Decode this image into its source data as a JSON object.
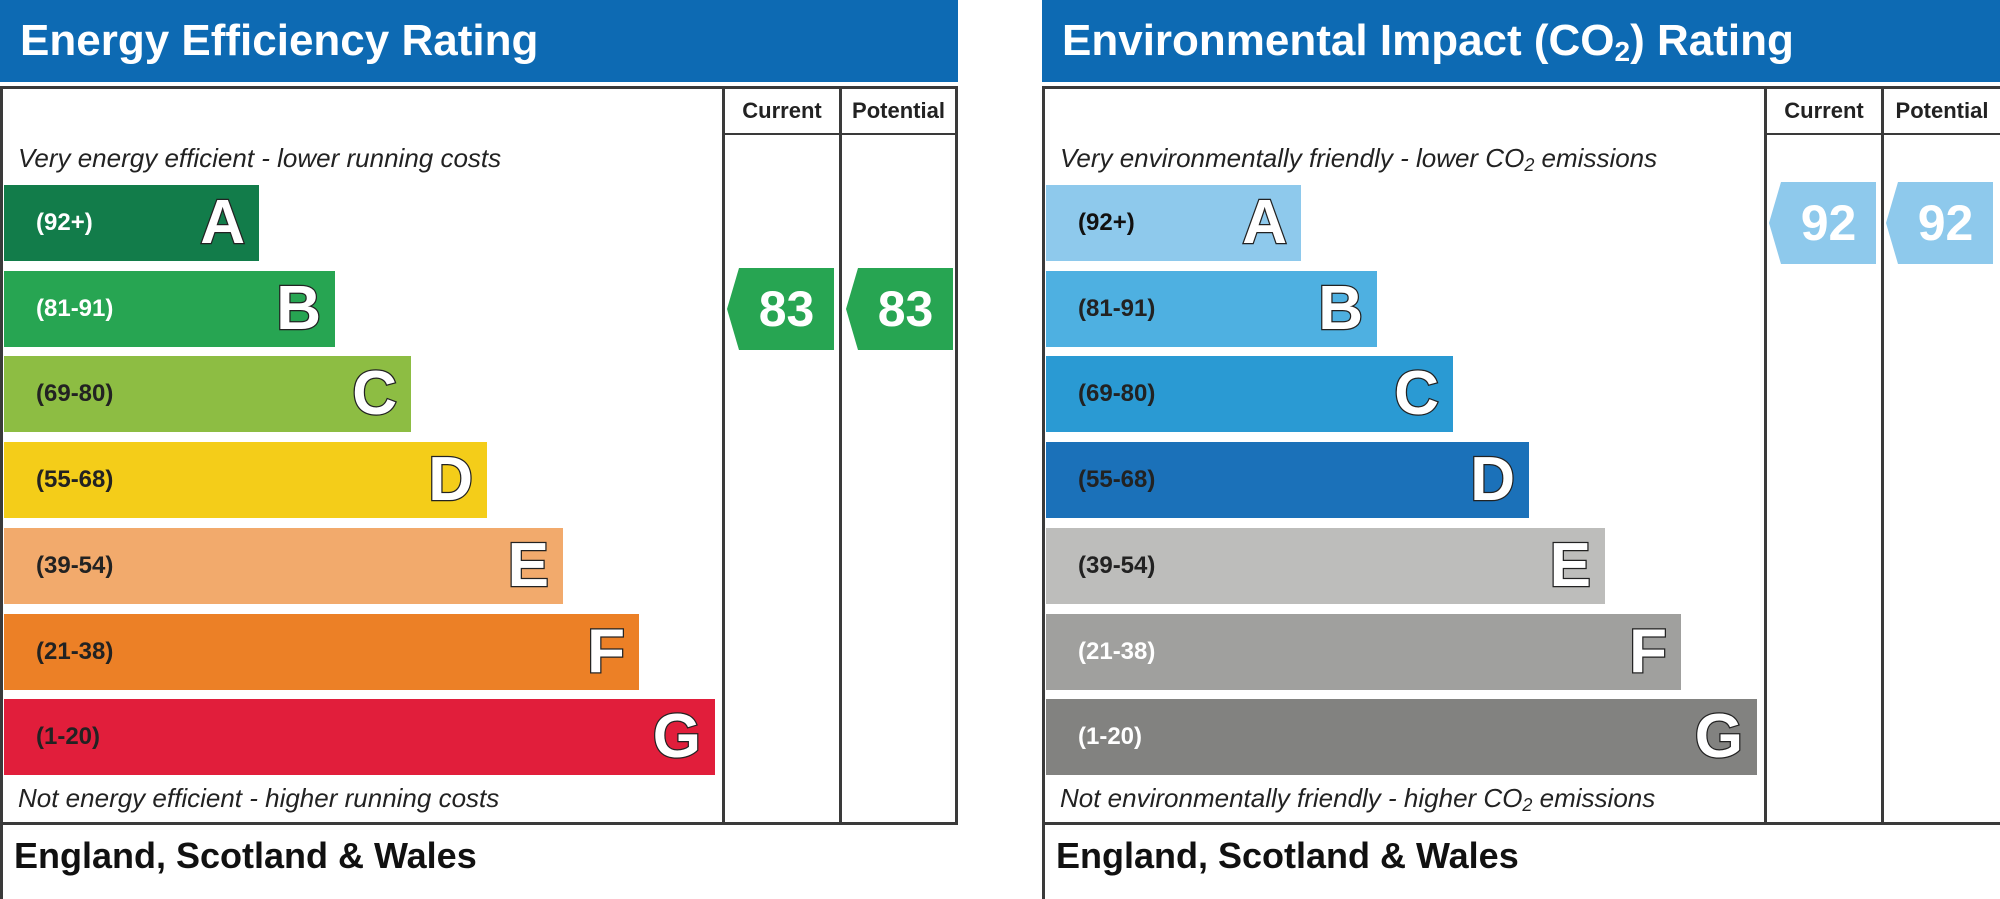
{
  "chart_data": [
    {
      "type": "rating-chart",
      "title": "Energy Efficiency Rating",
      "column_headers": [
        "Current",
        "Potential"
      ],
      "top_note": "Very energy efficient - lower running costs",
      "bottom_note": "Not energy efficient - higher running costs",
      "footer": "England, Scotland & Wales",
      "bands": [
        {
          "range": "(92+)",
          "letter": "A",
          "color": "#127c4a",
          "text_color": "#ffffff"
        },
        {
          "range": "(81-91)",
          "letter": "B",
          "color": "#27a552",
          "text_color": "#ffffff"
        },
        {
          "range": "(69-80)",
          "letter": "C",
          "color": "#8dbd43",
          "text_color": "#222222"
        },
        {
          "range": "(55-68)",
          "letter": "D",
          "color": "#f4cd19",
          "text_color": "#222222"
        },
        {
          "range": "(39-54)",
          "letter": "E",
          "color": "#f2aa6c",
          "text_color": "#222222"
        },
        {
          "range": "(21-38)",
          "letter": "F",
          "color": "#ec8026",
          "text_color": "#222222"
        },
        {
          "range": "(1-20)",
          "letter": "G",
          "color": "#e11e3b",
          "text_color": "#222222"
        }
      ],
      "current": {
        "value": 83,
        "band": "B",
        "color": "#27a552"
      },
      "potential": {
        "value": 83,
        "band": "B",
        "color": "#27a552"
      }
    },
    {
      "type": "rating-chart",
      "title": "Environmental Impact (CO2) Rating",
      "title_parts": [
        "Environmental Impact (CO",
        "2",
        ") Rating"
      ],
      "column_headers": [
        "Current",
        "Potential"
      ],
      "top_note": "Very environmentally friendly - lower CO2 emissions",
      "top_note_parts": [
        "Very environmentally friendly - lower CO",
        "2",
        " emissions"
      ],
      "bottom_note": "Not environmentally friendly - higher CO2 emissions",
      "bottom_note_parts": [
        "Not environmentally friendly - higher CO",
        "2",
        " emissions"
      ],
      "footer": "England, Scotland & Wales",
      "bands": [
        {
          "range": "(92+)",
          "letter": "A",
          "color": "#8ec9ec",
          "text_color": "#111111"
        },
        {
          "range": "(81-91)",
          "letter": "B",
          "color": "#4eb0e1",
          "text_color": "#222222"
        },
        {
          "range": "(69-80)",
          "letter": "C",
          "color": "#2a9ad3",
          "text_color": "#222222"
        },
        {
          "range": "(55-68)",
          "letter": "D",
          "color": "#1b71b9",
          "text_color": "#222222"
        },
        {
          "range": "(39-54)",
          "letter": "E",
          "color": "#bdbdbb",
          "text_color": "#222222"
        },
        {
          "range": "(21-38)",
          "letter": "F",
          "color": "#a0a09e",
          "text_color": "#ffffff"
        },
        {
          "range": "(1-20)",
          "letter": "G",
          "color": "#828280",
          "text_color": "#ffffff"
        }
      ],
      "current": {
        "value": 92,
        "band": "A",
        "color": "#8ec9ec"
      },
      "potential": {
        "value": 92,
        "band": "A",
        "color": "#8ec9ec"
      }
    }
  ]
}
